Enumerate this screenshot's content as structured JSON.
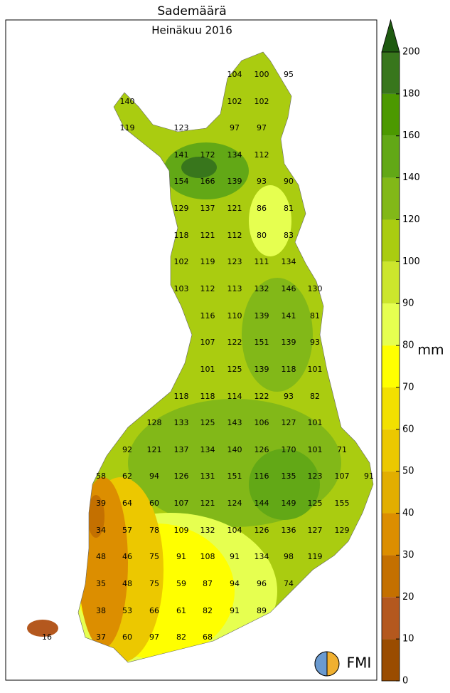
{
  "title": "Sademäärä",
  "subtitle": "Heinäkuu 2016",
  "colorbar": {
    "label": "mm",
    "ticks": [
      0,
      10,
      20,
      30,
      40,
      50,
      60,
      70,
      80,
      90,
      100,
      120,
      140,
      160,
      180,
      200
    ],
    "colors": [
      "#9a4c00",
      "#b4581e",
      "#c47000",
      "#dc8e00",
      "#e2ae00",
      "#ecc800",
      "#f2e000",
      "#ffff00",
      "#e6ff50",
      "#cce62c",
      "#aacc10",
      "#82b818",
      "#62a816",
      "#4c9900",
      "#38761c"
    ],
    "extend_color": "#1e5a10"
  },
  "stations": [
    104,
    100,
    95,
    140,
    102,
    102,
    119,
    123,
    97,
    97,
    141,
    172,
    134,
    112,
    154,
    166,
    139,
    93,
    90,
    129,
    137,
    121,
    86,
    81,
    118,
    121,
    112,
    80,
    83,
    102,
    119,
    123,
    111,
    134,
    103,
    112,
    113,
    132,
    146,
    130,
    116,
    110,
    139,
    141,
    81,
    107,
    122,
    151,
    139,
    93,
    101,
    125,
    139,
    118,
    101,
    118,
    118,
    114,
    122,
    93,
    82,
    128,
    133,
    125,
    143,
    106,
    127,
    101,
    92,
    121,
    137,
    134,
    140,
    126,
    170,
    101,
    71,
    58,
    62,
    94,
    126,
    131,
    151,
    116,
    135,
    123,
    107,
    91,
    39,
    64,
    60,
    107,
    121,
    124,
    144,
    149,
    125,
    155,
    34,
    57,
    78,
    109,
    132,
    104,
    126,
    136,
    127,
    129,
    48,
    46,
    75,
    91,
    108,
    91,
    134,
    98,
    119,
    35,
    48,
    75,
    59,
    87,
    94,
    96,
    74,
    38,
    53,
    66,
    61,
    82,
    91,
    89,
    16,
    37,
    60,
    97,
    82,
    68
  ],
  "logo": "FMI"
}
